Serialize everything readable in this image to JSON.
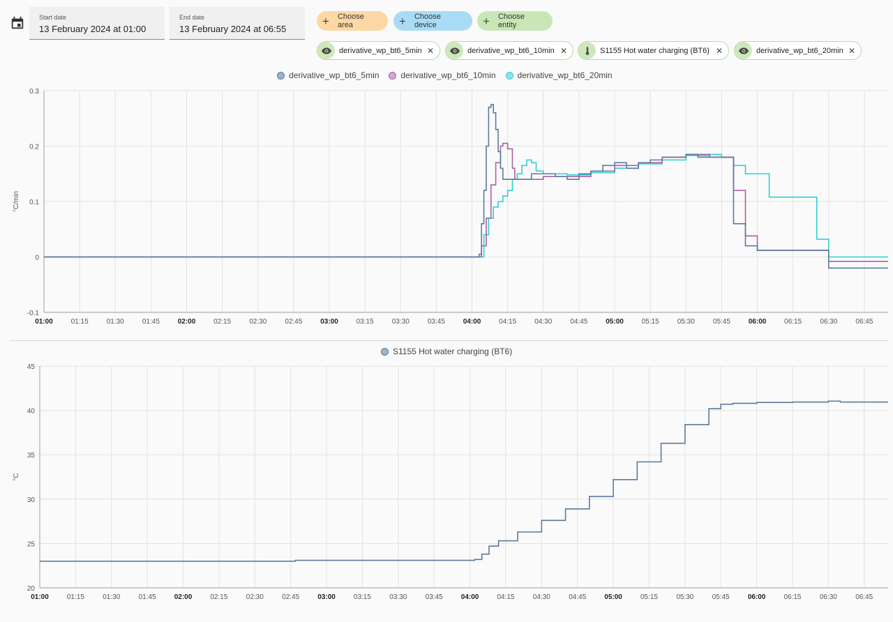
{
  "toolbar": {
    "calendar_icon": "calendar-icon",
    "start_date": {
      "label": "Start date",
      "value": "13 February 2024 at 01:00"
    },
    "end_date": {
      "label": "End date",
      "value": "13 February 2024 at 06:55"
    },
    "choose_area": {
      "label": "Choose area",
      "color": "#fdd8a4"
    },
    "choose_device": {
      "label": "Choose device",
      "color": "#a9dcf4"
    },
    "choose_entity": {
      "label": "Choose entity",
      "color": "#c9e7b6"
    }
  },
  "chips": [
    {
      "label": "derivative_wp_bt6_5min",
      "icon": "eye-icon"
    },
    {
      "label": "derivative_wp_bt6_10min",
      "icon": "eye-icon"
    },
    {
      "label": "S1155 Hot water charging (BT6)",
      "icon": "thermometer-icon"
    },
    {
      "label": "derivative_wp_bt6_20min",
      "icon": "eye-icon"
    }
  ],
  "chart_data": [
    {
      "type": "line",
      "step": true,
      "ylabel": "°C/min",
      "ylim": [
        -0.1,
        0.3
      ],
      "yticks": [
        -0.1,
        0,
        0.1,
        0.2,
        0.3
      ],
      "ytick_labels": [
        "-0.1",
        "0",
        "0.1",
        "0.2",
        "0.3"
      ],
      "xlim": [
        "01:00",
        "06:55"
      ],
      "xticks": [
        "01:00",
        "01:15",
        "01:30",
        "01:45",
        "02:00",
        "02:15",
        "02:30",
        "02:45",
        "03:00",
        "03:15",
        "03:30",
        "03:45",
        "04:00",
        "04:15",
        "04:30",
        "04:45",
        "05:00",
        "05:15",
        "05:30",
        "05:45",
        "06:00",
        "06:15",
        "06:30",
        "06:45"
      ],
      "bold_ticks": [
        "01:00",
        "02:00",
        "03:00",
        "04:00",
        "05:00",
        "06:00"
      ],
      "grid": true,
      "legend": "top-center",
      "series": [
        {
          "name": "derivative_wp_bt6_5min",
          "color": "#5b7b9d",
          "fill": "#9fb3c8",
          "x": [
            "01:00",
            "04:03",
            "04:04",
            "04:05",
            "04:06",
            "04:07",
            "04:08",
            "04:09",
            "04:10",
            "04:11",
            "04:12",
            "04:13",
            "04:20",
            "04:25",
            "04:30",
            "04:35",
            "04:40",
            "04:45",
            "04:50",
            "04:55",
            "05:00",
            "05:05",
            "05:10",
            "05:15",
            "05:20",
            "05:25",
            "05:30",
            "05:35",
            "05:40",
            "05:45",
            "05:50",
            "05:55",
            "06:00",
            "06:15",
            "06:25",
            "06:30",
            "06:55"
          ],
          "y": [
            0,
            0.005,
            0.06,
            0.12,
            0.2,
            0.27,
            0.275,
            0.26,
            0.23,
            0.19,
            0.16,
            0.14,
            0.14,
            0.15,
            0.15,
            0.145,
            0.14,
            0.15,
            0.155,
            0.165,
            0.17,
            0.16,
            0.17,
            0.175,
            0.18,
            0.18,
            0.185,
            0.18,
            0.18,
            0.18,
            0.06,
            0.02,
            0.012,
            0.012,
            0.012,
            -0.02,
            -0.02
          ]
        },
        {
          "name": "derivative_wp_bt6_10min",
          "color": "#a662a4",
          "fill": "#d2a8d1",
          "x": [
            "01:00",
            "04:04",
            "04:06",
            "04:08",
            "04:10",
            "04:12",
            "04:13",
            "04:15",
            "04:17",
            "04:18",
            "04:20",
            "04:30",
            "04:40",
            "04:50",
            "05:00",
            "05:10",
            "05:20",
            "05:30",
            "05:40",
            "05:45",
            "05:50",
            "05:55",
            "06:00",
            "06:25",
            "06:30",
            "06:55"
          ],
          "y": [
            0,
            0.02,
            0.07,
            0.13,
            0.17,
            0.2,
            0.205,
            0.195,
            0.16,
            0.14,
            0.14,
            0.145,
            0.145,
            0.155,
            0.165,
            0.17,
            0.18,
            0.185,
            0.18,
            0.18,
            0.12,
            0.038,
            0.012,
            0.012,
            -0.008,
            -0.008
          ]
        },
        {
          "name": "derivative_wp_bt6_20min",
          "color": "#2ed0d6",
          "fill": "#8fe3e6",
          "x": [
            "01:00",
            "04:05",
            "04:07",
            "04:09",
            "04:11",
            "04:13",
            "04:15",
            "04:17",
            "04:19",
            "04:21",
            "04:23",
            "04:25",
            "04:27",
            "04:30",
            "04:40",
            "04:50",
            "05:00",
            "05:10",
            "05:20",
            "05:30",
            "05:40",
            "05:45",
            "05:50",
            "05:55",
            "06:05",
            "06:25",
            "06:30",
            "06:55"
          ],
          "y": [
            0,
            0.04,
            0.07,
            0.09,
            0.1,
            0.11,
            0.12,
            0.14,
            0.15,
            0.165,
            0.175,
            0.17,
            0.155,
            0.15,
            0.148,
            0.152,
            0.16,
            0.168,
            0.175,
            0.183,
            0.185,
            0.18,
            0.165,
            0.15,
            0.108,
            0.032,
            0.0,
            0.0
          ]
        }
      ]
    },
    {
      "type": "line",
      "step": true,
      "ylabel": "°C",
      "ylim": [
        20,
        45
      ],
      "yticks": [
        20,
        25,
        30,
        35,
        40,
        45
      ],
      "ytick_labels": [
        "20",
        "25",
        "30",
        "35",
        "40",
        "45"
      ],
      "xlim": [
        "01:00",
        "06:55"
      ],
      "xticks": [
        "01:00",
        "01:15",
        "01:30",
        "01:45",
        "02:00",
        "02:15",
        "02:30",
        "02:45",
        "03:00",
        "03:15",
        "03:30",
        "03:45",
        "04:00",
        "04:15",
        "04:30",
        "04:45",
        "05:00",
        "05:15",
        "05:30",
        "05:45",
        "06:00",
        "06:15",
        "06:30",
        "06:45"
      ],
      "bold_ticks": [
        "01:00",
        "02:00",
        "03:00",
        "04:00",
        "05:00",
        "06:00"
      ],
      "grid": true,
      "legend": "top-center",
      "series": [
        {
          "name": "S1155 Hot water charging (BT6)",
          "color": "#5b7b9d",
          "fill": "#9fb3c8",
          "x": [
            "01:00",
            "02:47",
            "04:02",
            "04:05",
            "04:08",
            "04:12",
            "04:20",
            "04:30",
            "04:40",
            "04:50",
            "05:00",
            "05:10",
            "05:20",
            "05:30",
            "05:40",
            "05:45",
            "05:50",
            "06:00",
            "06:15",
            "06:30",
            "06:35",
            "06:55"
          ],
          "y": [
            23.0,
            23.1,
            23.2,
            23.8,
            24.7,
            25.3,
            26.3,
            27.6,
            28.9,
            30.3,
            32.2,
            34.2,
            36.3,
            38.4,
            40.2,
            40.7,
            40.8,
            40.9,
            40.95,
            41.05,
            40.95,
            40.95
          ]
        }
      ]
    }
  ]
}
